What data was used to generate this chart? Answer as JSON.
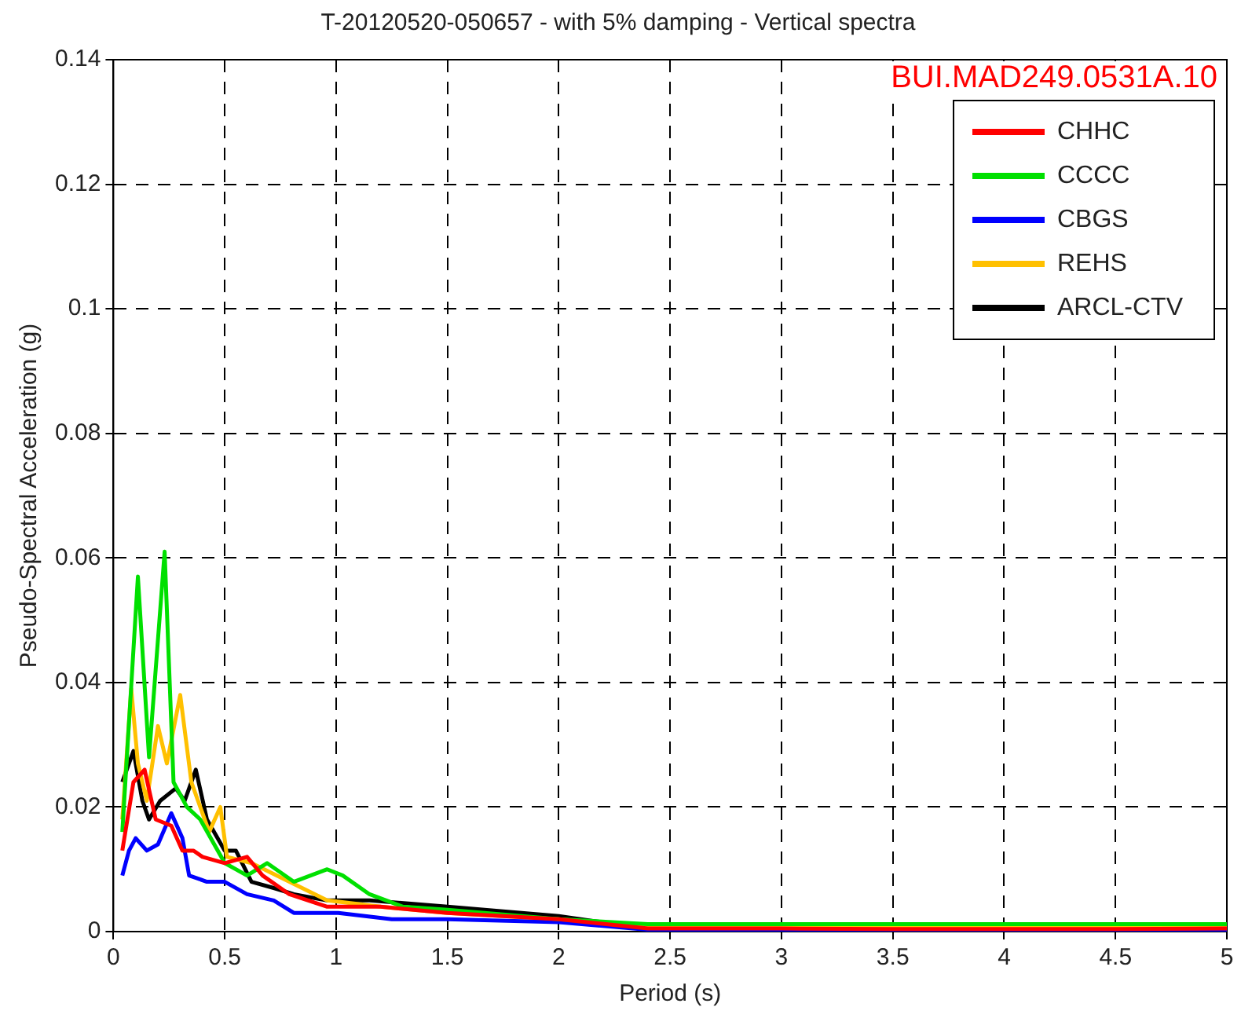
{
  "chart_data": {
    "type": "line",
    "title": "T-20120520-050657 - with 5% damping - Vertical spectra",
    "xlabel": "Period (s)",
    "ylabel": "Pseudo-Spectral Acceleration (g)",
    "annotations": [
      "BUI.MAD249.0531A.10"
    ],
    "xlim": [
      0,
      5
    ],
    "xticks": [
      0,
      0.5,
      1,
      1.5,
      2,
      2.5,
      3,
      3.5,
      4,
      4.5,
      5
    ],
    "ylim": [
      0,
      0.14
    ],
    "yticks": [
      0,
      0.02,
      0.04,
      0.06,
      0.08,
      0.1,
      0.12,
      0.14
    ],
    "grid": true,
    "legend": "top right",
    "marker": "none",
    "line_style": "solid",
    "series": [
      {
        "name": "CHHC",
        "color": "#ff0000",
        "x": [
          0.04,
          0.09,
          0.14,
          0.19,
          0.26,
          0.31,
          0.36,
          0.4,
          0.5,
          0.6,
          0.67,
          0.79,
          0.96,
          1.2,
          1.5,
          2,
          2.4,
          3,
          3.5,
          4,
          4.5,
          5
        ],
        "values": [
          0.013,
          0.024,
          0.026,
          0.018,
          0.017,
          0.013,
          0.013,
          0.012,
          0.011,
          0.012,
          0.009,
          0.006,
          0.004,
          0.004,
          0.003,
          0.002,
          0.0005,
          0.0005,
          0.0004,
          0.0004,
          0.0004,
          0.0005
        ]
      },
      {
        "name": "CCCC",
        "color": "#00e000",
        "x": [
          0.04,
          0.11,
          0.16,
          0.23,
          0.27,
          0.33,
          0.39,
          0.5,
          0.6,
          0.69,
          0.81,
          0.96,
          1.03,
          1.15,
          1.3,
          1.5,
          2,
          2.4,
          3,
          3.5,
          4,
          4.5,
          5
        ],
        "values": [
          0.016,
          0.057,
          0.028,
          0.061,
          0.024,
          0.02,
          0.018,
          0.011,
          0.009,
          0.011,
          0.008,
          0.01,
          0.009,
          0.006,
          0.004,
          0.0035,
          0.002,
          0.0012,
          0.0012,
          0.0012,
          0.0012,
          0.0012,
          0.0012
        ]
      },
      {
        "name": "CBGS",
        "color": "#0000ff",
        "x": [
          0.04,
          0.07,
          0.1,
          0.15,
          0.2,
          0.26,
          0.31,
          0.34,
          0.42,
          0.5,
          0.6,
          0.72,
          0.81,
          1.01,
          1.25,
          1.5,
          2,
          2.4,
          3,
          3.5,
          4,
          4.5,
          5
        ],
        "values": [
          0.009,
          0.013,
          0.015,
          0.013,
          0.014,
          0.019,
          0.015,
          0.009,
          0.008,
          0.008,
          0.006,
          0.005,
          0.003,
          0.003,
          0.002,
          0.002,
          0.0015,
          0.0003,
          0.0003,
          0.0002,
          0.0002,
          0.0002,
          0.0003
        ]
      },
      {
        "name": "REHS",
        "color": "#ffc000",
        "x": [
          0.04,
          0.08,
          0.11,
          0.15,
          0.2,
          0.24,
          0.3,
          0.35,
          0.43,
          0.48,
          0.51,
          0.62,
          0.79,
          0.96,
          1.2,
          1.5,
          2,
          2.4,
          3,
          3.5,
          4,
          4.5,
          5
        ],
        "values": [
          0.018,
          0.039,
          0.027,
          0.021,
          0.033,
          0.027,
          0.038,
          0.024,
          0.016,
          0.02,
          0.012,
          0.011,
          0.008,
          0.005,
          0.004,
          0.003,
          0.002,
          0.0007,
          0.0007,
          0.0007,
          0.0006,
          0.0006,
          0.0006
        ]
      },
      {
        "name": "ARCL-CTV",
        "color": "#000000",
        "x": [
          0.04,
          0.09,
          0.13,
          0.16,
          0.21,
          0.28,
          0.32,
          0.37,
          0.42,
          0.5,
          0.55,
          0.62,
          0.72,
          0.81,
          0.96,
          1.15,
          1.5,
          2,
          2.4,
          3,
          3.5,
          4,
          4.5,
          5
        ],
        "values": [
          0.024,
          0.029,
          0.021,
          0.018,
          0.021,
          0.023,
          0.021,
          0.026,
          0.018,
          0.013,
          0.013,
          0.008,
          0.007,
          0.006,
          0.005,
          0.005,
          0.004,
          0.0025,
          0.0004,
          0.0004,
          0.0003,
          0.0003,
          0.0003,
          0.0012
        ]
      }
    ]
  }
}
